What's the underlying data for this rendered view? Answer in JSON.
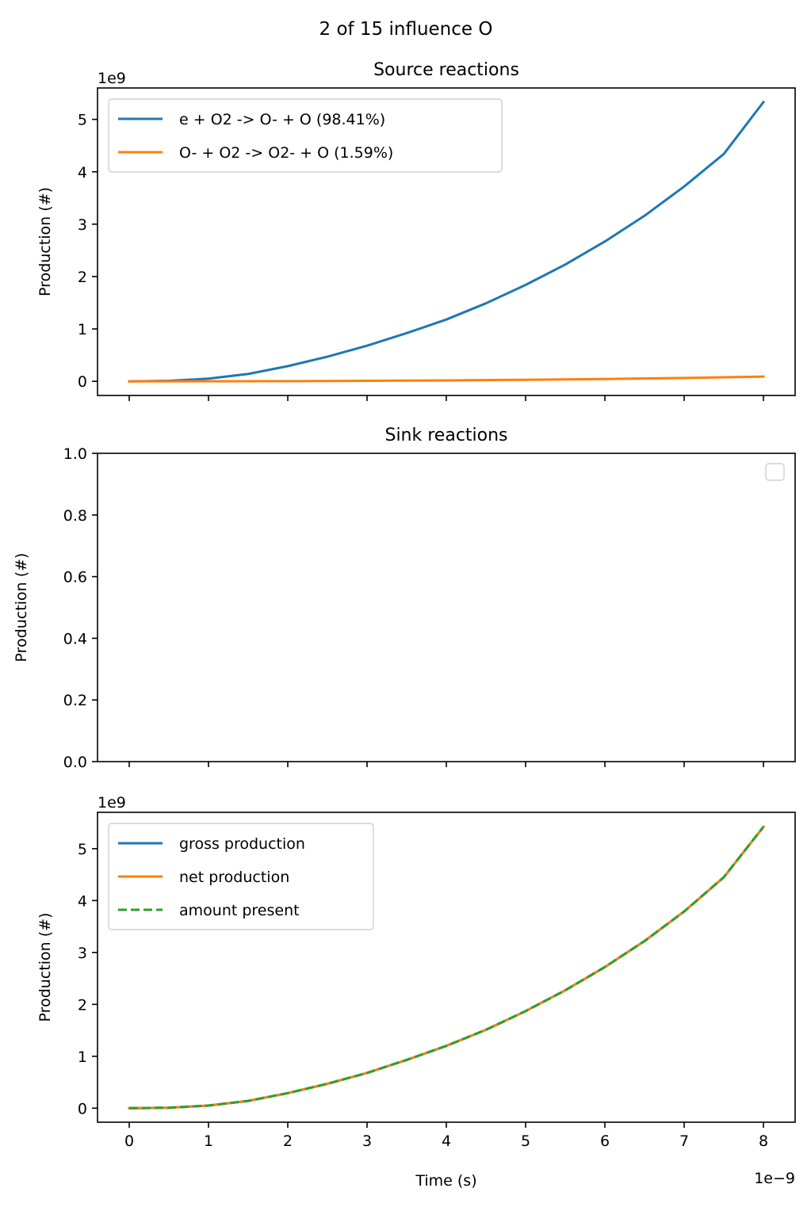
{
  "figure": {
    "suptitle": "2 of 15 influence O"
  },
  "chart_data": [
    {
      "type": "line",
      "title": "Source reactions",
      "xlabel": "",
      "ylabel": "Production (#)",
      "y_offset_label": "1e9",
      "xlim": [
        -0.4,
        8.4
      ],
      "ylim": [
        -0.27,
        5.6
      ],
      "x_ticks": [
        0,
        1,
        2,
        3,
        4,
        5,
        6,
        7,
        8
      ],
      "x_tick_labels_shown": false,
      "y_ticks": [
        0,
        1,
        2,
        3,
        4,
        5
      ],
      "y_tick_labels": [
        "0",
        "1",
        "2",
        "3",
        "4",
        "5"
      ],
      "legend": {
        "position": "upper-left",
        "entries": [
          "e + O2 -> O- + O (98.41%)",
          "O- + O2 -> O2- + O (1.59%)"
        ]
      },
      "series": [
        {
          "name": "e + O2 -> O- + O (98.41%)",
          "color": "#1f77b4",
          "dash": "solid",
          "x": [
            0,
            0.5,
            1,
            1.5,
            2,
            2.5,
            3,
            3.5,
            4,
            4.5,
            5,
            5.5,
            6,
            6.5,
            7,
            7.5,
            8
          ],
          "values": [
            0,
            0.01,
            0.05,
            0.14,
            0.29,
            0.47,
            0.68,
            0.92,
            1.18,
            1.49,
            1.84,
            2.23,
            2.67,
            3.16,
            3.72,
            4.34,
            5.33
          ]
        },
        {
          "name": "O- + O2 -> O2- + O (1.59%)",
          "color": "#ff7f0e",
          "dash": "solid",
          "x": [
            0,
            1,
            2,
            3,
            4,
            5,
            6,
            7,
            8
          ],
          "values": [
            0,
            0.001,
            0.004,
            0.01,
            0.018,
            0.03,
            0.045,
            0.065,
            0.09
          ]
        }
      ]
    },
    {
      "type": "line",
      "title": "Sink reactions",
      "xlabel": "",
      "ylabel": "Production (#)",
      "y_offset_label": "",
      "xlim": [
        -0.4,
        8.4
      ],
      "ylim": [
        0,
        1
      ],
      "x_ticks": [
        0,
        1,
        2,
        3,
        4,
        5,
        6,
        7,
        8
      ],
      "x_tick_labels_shown": false,
      "y_ticks": [
        0,
        0.2,
        0.4,
        0.6,
        0.8,
        1.0
      ],
      "y_tick_labels": [
        "0.0",
        "0.2",
        "0.4",
        "0.6",
        "0.8",
        "1.0"
      ],
      "legend": {
        "position": "upper-right",
        "entries": []
      },
      "series": []
    },
    {
      "type": "line",
      "title": "",
      "xlabel": "Time (s)",
      "ylabel": "Production (#)",
      "y_offset_label": "1e9",
      "x_offset_label": "1e−9",
      "xlim": [
        -0.4,
        8.4
      ],
      "ylim": [
        -0.27,
        5.7
      ],
      "x_ticks": [
        0,
        1,
        2,
        3,
        4,
        5,
        6,
        7,
        8
      ],
      "x_tick_labels": [
        "0",
        "1",
        "2",
        "3",
        "4",
        "5",
        "6",
        "7",
        "8"
      ],
      "x_tick_labels_shown": true,
      "y_ticks": [
        0,
        1,
        2,
        3,
        4,
        5
      ],
      "y_tick_labels": [
        "0",
        "1",
        "2",
        "3",
        "4",
        "5"
      ],
      "legend": {
        "position": "upper-left",
        "entries": [
          "gross production",
          "net production",
          "amount present"
        ]
      },
      "series": [
        {
          "name": "gross production",
          "color": "#1f77b4",
          "dash": "solid",
          "x": [
            0,
            0.5,
            1,
            1.5,
            2,
            2.5,
            3,
            3.5,
            4,
            4.5,
            5,
            5.5,
            6,
            6.5,
            7,
            7.5,
            8
          ],
          "values": [
            0,
            0.01,
            0.05,
            0.14,
            0.29,
            0.47,
            0.68,
            0.93,
            1.2,
            1.51,
            1.87,
            2.27,
            2.72,
            3.22,
            3.79,
            4.45,
            5.42
          ]
        },
        {
          "name": "net production",
          "color": "#ff7f0e",
          "dash": "solid",
          "x": [
            0,
            0.5,
            1,
            1.5,
            2,
            2.5,
            3,
            3.5,
            4,
            4.5,
            5,
            5.5,
            6,
            6.5,
            7,
            7.5,
            8
          ],
          "values": [
            0,
            0.01,
            0.05,
            0.14,
            0.29,
            0.47,
            0.68,
            0.93,
            1.2,
            1.51,
            1.87,
            2.27,
            2.72,
            3.22,
            3.79,
            4.45,
            5.42
          ]
        },
        {
          "name": "amount present",
          "color": "#2ca02c",
          "dash": "dashed",
          "x": [
            0,
            0.5,
            1,
            1.5,
            2,
            2.5,
            3,
            3.5,
            4,
            4.5,
            5,
            5.5,
            6,
            6.5,
            7,
            7.5,
            8
          ],
          "values": [
            0,
            0.01,
            0.05,
            0.14,
            0.29,
            0.47,
            0.68,
            0.93,
            1.2,
            1.51,
            1.87,
            2.27,
            2.72,
            3.22,
            3.79,
            4.45,
            5.42
          ]
        }
      ]
    }
  ]
}
